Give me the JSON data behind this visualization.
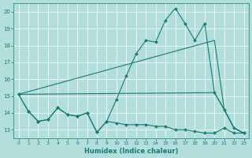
{
  "xlabel": "Humidex (Indice chaleur)",
  "background_color": "#b2dede",
  "grid_color": "#ffffff",
  "line_color": "#1a7a6e",
  "xlim": [
    -0.5,
    23.5
  ],
  "ylim": [
    12.5,
    20.5
  ],
  "yticks": [
    13,
    14,
    15,
    16,
    17,
    18,
    19,
    20
  ],
  "xticks": [
    0,
    1,
    2,
    3,
    4,
    5,
    6,
    7,
    8,
    9,
    10,
    11,
    12,
    13,
    14,
    15,
    16,
    17,
    18,
    19,
    20,
    21,
    22,
    23
  ],
  "series_marked": {
    "x": [
      0,
      1,
      2,
      3,
      4,
      5,
      6,
      7,
      8,
      9,
      10,
      11,
      12,
      13,
      14,
      15,
      16,
      17,
      18,
      19,
      20,
      21,
      22,
      23
    ],
    "y": [
      15.1,
      14.1,
      13.5,
      13.6,
      14.3,
      13.9,
      13.8,
      14.0,
      12.85,
      13.5,
      14.8,
      16.2,
      17.5,
      18.3,
      18.2,
      19.5,
      20.2,
      19.3,
      18.3,
      19.3,
      15.2,
      14.2,
      13.1,
      12.8
    ]
  },
  "series_upper_straight": {
    "x": [
      0,
      20,
      21,
      22,
      23
    ],
    "y": [
      15.1,
      18.3,
      14.2,
      13.1,
      12.8
    ]
  },
  "series_lower_straight": {
    "x": [
      0,
      20,
      21,
      22,
      23
    ],
    "y": [
      15.1,
      15.2,
      14.2,
      13.1,
      12.8
    ]
  },
  "series_bottom": {
    "x": [
      0,
      1,
      2,
      3,
      4,
      5,
      6,
      7,
      8,
      9,
      10,
      11,
      12,
      13,
      14,
      15,
      16,
      17,
      18,
      19,
      20,
      21,
      22,
      23
    ],
    "y": [
      15.1,
      14.1,
      13.5,
      13.6,
      14.3,
      13.9,
      13.8,
      14.0,
      12.85,
      13.5,
      13.4,
      13.3,
      13.3,
      13.3,
      13.2,
      13.2,
      13.0,
      13.0,
      12.9,
      12.8,
      12.8,
      13.1,
      12.8,
      12.8
    ]
  }
}
